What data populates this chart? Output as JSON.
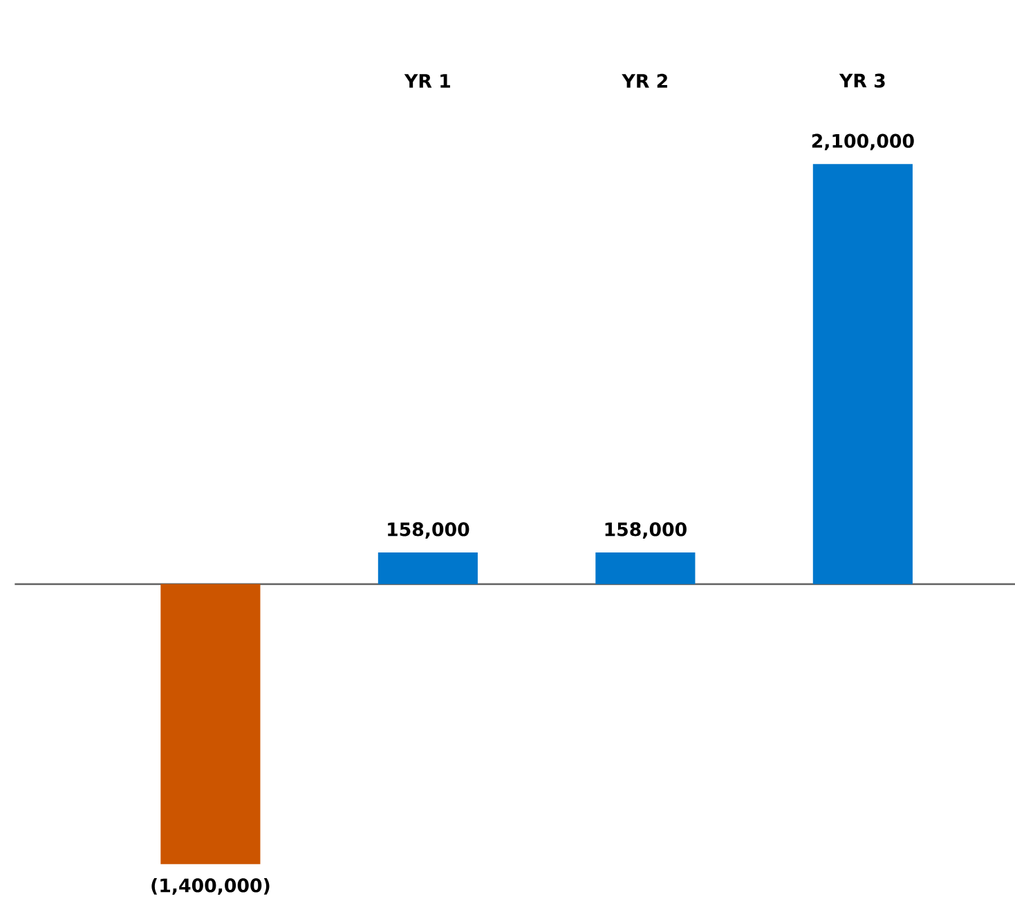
{
  "chart_data": {
    "type": "bar",
    "categories": [
      null,
      "YR 1",
      "YR 2",
      "YR 3"
    ],
    "values": [
      -1400000,
      158000,
      158000,
      2100000
    ],
    "colors": [
      "#cc5500",
      "#0077cc",
      "#0077cc",
      "#0077cc"
    ],
    "value_labels": [
      "(1,400,000)",
      "158,000",
      "158,000",
      "2,100,000"
    ]
  }
}
